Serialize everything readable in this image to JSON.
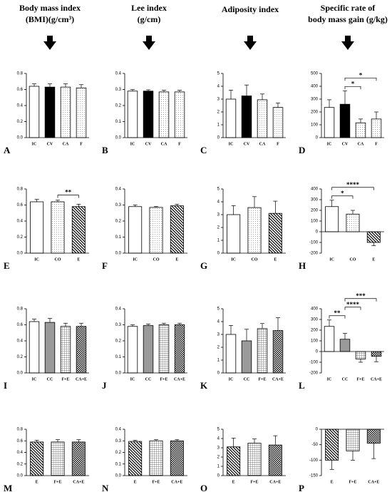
{
  "column_headers": [
    [
      "Body mass index",
      "(BMI)(g/cm³)"
    ],
    [
      "Lee index",
      "(g/cm)"
    ],
    [
      "Adiposity index"
    ],
    [
      "Specific rate of",
      "body mass gain (g/kg)"
    ]
  ],
  "chart_data": [
    {
      "type": "bar",
      "panel": "A",
      "categories": [
        "IC",
        "CV",
        "CA",
        "F"
      ],
      "values": [
        0.64,
        0.63,
        0.63,
        0.62
      ],
      "errors": [
        0.03,
        0.04,
        0.04,
        0.04
      ],
      "fills": [
        "white",
        "black",
        "dots",
        "dots"
      ],
      "ylim": [
        0,
        0.8
      ],
      "yticks": [
        {
          "value": 0,
          "label": "0.0"
        },
        0.2,
        0.4,
        0.6,
        0.8
      ],
      "annotations": []
    },
    {
      "type": "bar",
      "panel": "B",
      "categories": [
        "IC",
        "CV",
        "CA",
        "F"
      ],
      "values": [
        0.29,
        0.29,
        0.285,
        0.285
      ],
      "errors": [
        0.01,
        0.008,
        0.01,
        0.01
      ],
      "fills": [
        "white",
        "black",
        "dots",
        "dots"
      ],
      "ylim": [
        0,
        0.4
      ],
      "yticks": [
        {
          "value": 0,
          "label": "0.0"
        },
        0.1,
        0.2,
        0.3,
        0.4
      ],
      "annotations": []
    },
    {
      "type": "bar",
      "panel": "C",
      "categories": [
        "IC",
        "CV",
        "CA",
        "F"
      ],
      "values": [
        3.0,
        3.25,
        2.95,
        2.35
      ],
      "errors": [
        0.7,
        0.85,
        0.45,
        0.35
      ],
      "fills": [
        "white",
        "black",
        "dots",
        "dots"
      ],
      "ylim": [
        0,
        5
      ],
      "yticks": [
        0,
        1,
        2,
        3,
        4,
        5
      ],
      "annotations": []
    },
    {
      "type": "bar",
      "panel": "D",
      "categories": [
        "IC",
        "CV",
        "CA",
        "F"
      ],
      "values": [
        235,
        260,
        115,
        145
      ],
      "errors": [
        60,
        105,
        30,
        55
      ],
      "fills": [
        "white",
        "black",
        "dots",
        "dots"
      ],
      "ylim": [
        0,
        500
      ],
      "yticks": [
        0,
        100,
        200,
        300,
        400,
        500
      ],
      "annotations": [
        {
          "text": "*",
          "from": 1,
          "to": 2
        },
        {
          "text": "*",
          "from": 1,
          "to": 3
        }
      ]
    },
    {
      "type": "bar",
      "panel": "E",
      "categories": [
        "IC",
        "CO",
        "E"
      ],
      "values": [
        0.64,
        0.64,
        0.58
      ],
      "errors": [
        0.03,
        0.02,
        0.03
      ],
      "fills": [
        "white",
        "dots",
        "hatch"
      ],
      "ylim": [
        0,
        0.8
      ],
      "yticks": [
        {
          "value": 0,
          "label": "0.0"
        },
        0.2,
        0.4,
        0.6,
        0.8
      ],
      "annotations": [
        {
          "text": "**",
          "from": 1,
          "to": 2
        }
      ]
    },
    {
      "type": "bar",
      "panel": "F",
      "categories": [
        "IC",
        "CO",
        "E"
      ],
      "values": [
        0.29,
        0.285,
        0.295
      ],
      "errors": [
        0.01,
        0.005,
        0.01
      ],
      "fills": [
        "white",
        "dots",
        "hatch"
      ],
      "ylim": [
        0,
        0.4
      ],
      "yticks": [
        {
          "value": 0,
          "label": "0.0"
        },
        0.1,
        0.2,
        0.3,
        0.4
      ],
      "annotations": []
    },
    {
      "type": "bar",
      "panel": "G",
      "categories": [
        "IC",
        "CO",
        "E"
      ],
      "values": [
        3.0,
        3.55,
        3.1
      ],
      "errors": [
        0.7,
        0.85,
        0.95
      ],
      "fills": [
        "white",
        "dots",
        "hatch"
      ],
      "ylim": [
        0,
        5
      ],
      "yticks": [
        0,
        1,
        2,
        3,
        4,
        5
      ],
      "annotations": []
    },
    {
      "type": "bar",
      "panel": "H",
      "categories": [
        "IC",
        "CO",
        "E"
      ],
      "values": [
        235,
        165,
        -100
      ],
      "errors": [
        60,
        35,
        30
      ],
      "fills": [
        "white",
        "dots",
        "hatch"
      ],
      "ylim": [
        -200,
        400
      ],
      "yticks": [
        -200,
        -100,
        0,
        100,
        200,
        300,
        400
      ],
      "annotations": [
        {
          "text": "*",
          "from": 0,
          "to": 1
        },
        {
          "text": "****",
          "from": 0,
          "to": 2
        }
      ]
    },
    {
      "type": "bar",
      "panel": "I",
      "categories": [
        "IC",
        "CC",
        "F+E",
        "CA+E"
      ],
      "values": [
        0.64,
        0.63,
        0.58,
        0.58
      ],
      "errors": [
        0.03,
        0.05,
        0.04,
        0.04
      ],
      "fills": [
        "white",
        "grey",
        "grid",
        "cross"
      ],
      "ylim": [
        0,
        0.8
      ],
      "yticks": [
        {
          "value": 0,
          "label": "0.0"
        },
        0.2,
        0.4,
        0.6,
        0.8
      ],
      "annotations": []
    },
    {
      "type": "bar",
      "panel": "J",
      "categories": [
        "IC",
        "CC",
        "F+E",
        "CA+E"
      ],
      "values": [
        0.29,
        0.295,
        0.3,
        0.3
      ],
      "errors": [
        0.01,
        0.01,
        0.01,
        0.01
      ],
      "fills": [
        "white",
        "grey",
        "grid",
        "cross"
      ],
      "ylim": [
        0,
        0.4
      ],
      "yticks": [
        {
          "value": 0,
          "label": "0.0"
        },
        0.1,
        0.2,
        0.3,
        0.4
      ],
      "annotations": []
    },
    {
      "type": "bar",
      "panel": "K",
      "categories": [
        "IC",
        "CC",
        "F+E",
        "CA+E"
      ],
      "values": [
        3.0,
        2.5,
        3.45,
        3.3
      ],
      "errors": [
        0.7,
        0.9,
        0.4,
        1.0
      ],
      "fills": [
        "white",
        "grey",
        "grid",
        "cross"
      ],
      "ylim": [
        0,
        5
      ],
      "yticks": [
        0,
        1,
        2,
        3,
        4,
        5
      ],
      "annotations": []
    },
    {
      "type": "bar",
      "panel": "L",
      "categories": [
        "IC",
        "CC",
        "F+E",
        "CA+E"
      ],
      "values": [
        235,
        115,
        -70,
        -45
      ],
      "errors": [
        60,
        55,
        30,
        50
      ],
      "fills": [
        "white",
        "grey",
        "grid",
        "cross"
      ],
      "ylim": [
        -200,
        400
      ],
      "yticks": [
        -200,
        -100,
        0,
        100,
        200,
        300,
        400
      ],
      "annotations": [
        {
          "text": "**",
          "from": 0,
          "to": 1
        },
        {
          "text": "****",
          "from": 1,
          "to": 2
        },
        {
          "text": "***",
          "from": 1,
          "to": 3
        }
      ]
    },
    {
      "type": "bar",
      "panel": "M",
      "categories": [
        "E",
        "F+E",
        "CA+E"
      ],
      "values": [
        0.58,
        0.58,
        0.58
      ],
      "errors": [
        0.03,
        0.04,
        0.04
      ],
      "fills": [
        "hatch",
        "grid",
        "cross"
      ],
      "ylim": [
        0,
        0.8
      ],
      "yticks": [
        {
          "value": 0,
          "label": "0.0"
        },
        0.2,
        0.4,
        0.6,
        0.8
      ],
      "annotations": []
    },
    {
      "type": "bar",
      "panel": "N",
      "categories": [
        "E",
        "F+E",
        "CA+E"
      ],
      "values": [
        0.295,
        0.3,
        0.3
      ],
      "errors": [
        0.01,
        0.01,
        0.01
      ],
      "fills": [
        "hatch",
        "grid",
        "cross"
      ],
      "ylim": [
        0,
        0.4
      ],
      "yticks": [
        {
          "value": 0,
          "label": "0.0"
        },
        0.1,
        0.2,
        0.3,
        0.4
      ],
      "annotations": []
    },
    {
      "type": "bar",
      "panel": "O",
      "categories": [
        "E",
        "F+E",
        "CA+E"
      ],
      "values": [
        3.1,
        3.5,
        3.3
      ],
      "errors": [
        0.95,
        0.45,
        1.0
      ],
      "fills": [
        "hatch",
        "grid",
        "cross"
      ],
      "ylim": [
        0,
        5
      ],
      "yticks": [
        0,
        1,
        2,
        3,
        4,
        5
      ],
      "annotations": []
    },
    {
      "type": "bar",
      "panel": "P",
      "categories": [
        "E",
        "F+E",
        "CA+E"
      ],
      "values": [
        -100,
        -70,
        -45
      ],
      "errors": [
        30,
        30,
        50
      ],
      "fills": [
        "hatch",
        "grid",
        "cross"
      ],
      "ylim": [
        -150,
        0
      ],
      "yticks": [
        -150,
        -100,
        -50,
        0
      ],
      "annotations": []
    }
  ]
}
